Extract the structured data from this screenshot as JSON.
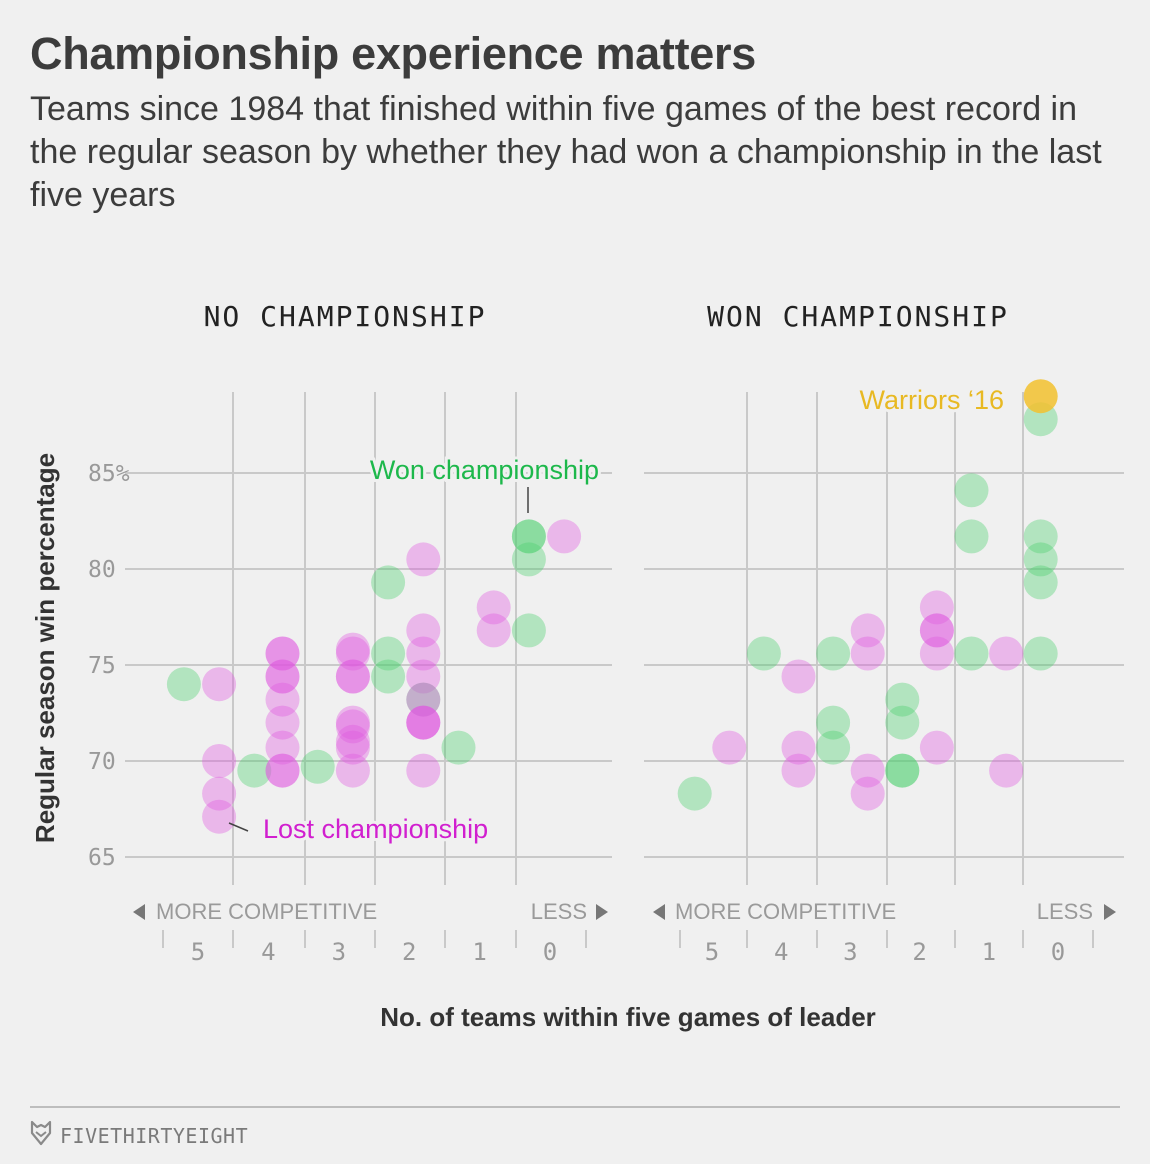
{
  "header": {
    "title": "Championship experience matters",
    "subtitle": "Teams since 1984 that finished within five games of the best record in the regular season by whether they had won a championship in the last five years"
  },
  "footer": {
    "brand": "FIVETHIRTYEIGHT",
    "brand_icon": "fivethirtyeight-fox-icon"
  },
  "colors": {
    "won": "#4ccf6e",
    "lost": "#e05ae0",
    "lost_dark": "#e01ed9",
    "warriors": "#f2c12e",
    "won_label": "#1db84b",
    "lost_label": "#d11fcf",
    "warriors_label": "#e8b923"
  },
  "chart_data": {
    "type": "scatter",
    "ylabel": "Regular season win percentage",
    "xlabel": "No. of teams within five games of leader",
    "ylim": [
      62.5,
      89
    ],
    "yticks": [
      "85%",
      "80",
      "75",
      "70",
      "65"
    ],
    "ytick_values": [
      85,
      80,
      75,
      70,
      65
    ],
    "x_categories": [
      "5",
      "4",
      "3",
      "2",
      "1",
      "0"
    ],
    "direction_labels": {
      "left": "MORE COMPETITIVE",
      "right": "LESS"
    },
    "panels": [
      {
        "title": "NO CHAMPIONSHIP",
        "annotations": {
          "won": "Won championship",
          "lost": "Lost championship"
        },
        "points": [
          {
            "x": 5.2,
            "y": 74.0,
            "result": "won"
          },
          {
            "x": 4.7,
            "y": 74.0,
            "result": "lost"
          },
          {
            "x": 4.7,
            "y": 70.0,
            "result": "lost"
          },
          {
            "x": 4.7,
            "y": 68.3,
            "result": "lost"
          },
          {
            "x": 4.7,
            "y": 67.1,
            "result": "lost"
          },
          {
            "x": 4.2,
            "y": 69.5,
            "result": "won"
          },
          {
            "x": 3.8,
            "y": 75.6,
            "result": "lost"
          },
          {
            "x": 3.8,
            "y": 75.6,
            "result": "lost"
          },
          {
            "x": 3.8,
            "y": 74.4,
            "result": "lost"
          },
          {
            "x": 3.8,
            "y": 74.4,
            "result": "lost"
          },
          {
            "x": 3.8,
            "y": 73.2,
            "result": "lost"
          },
          {
            "x": 3.8,
            "y": 72.0,
            "result": "lost"
          },
          {
            "x": 3.8,
            "y": 70.7,
            "result": "lost"
          },
          {
            "x": 3.8,
            "y": 69.5,
            "result": "lost"
          },
          {
            "x": 3.8,
            "y": 69.5,
            "result": "lost"
          },
          {
            "x": 3.3,
            "y": 69.7,
            "result": "won"
          },
          {
            "x": 2.8,
            "y": 75.8,
            "result": "lost"
          },
          {
            "x": 2.8,
            "y": 75.6,
            "result": "lost"
          },
          {
            "x": 2.8,
            "y": 74.4,
            "result": "lost"
          },
          {
            "x": 2.8,
            "y": 74.4,
            "result": "lost"
          },
          {
            "x": 2.8,
            "y": 72.0,
            "result": "lost"
          },
          {
            "x": 2.8,
            "y": 71.8,
            "result": "lost"
          },
          {
            "x": 2.8,
            "y": 71.0,
            "result": "lost"
          },
          {
            "x": 2.8,
            "y": 70.7,
            "result": "lost"
          },
          {
            "x": 2.8,
            "y": 69.5,
            "result": "lost"
          },
          {
            "x": 2.3,
            "y": 79.3,
            "result": "won"
          },
          {
            "x": 2.3,
            "y": 75.6,
            "result": "won"
          },
          {
            "x": 2.3,
            "y": 74.4,
            "result": "won"
          },
          {
            "x": 1.8,
            "y": 80.5,
            "result": "lost"
          },
          {
            "x": 1.8,
            "y": 76.8,
            "result": "lost"
          },
          {
            "x": 1.8,
            "y": 75.6,
            "result": "lost"
          },
          {
            "x": 1.8,
            "y": 74.4,
            "result": "lost"
          },
          {
            "x": 1.8,
            "y": 73.2,
            "result": "won"
          },
          {
            "x": 1.8,
            "y": 73.2,
            "result": "lost"
          },
          {
            "x": 1.8,
            "y": 72.0,
            "result": "lost"
          },
          {
            "x": 1.8,
            "y": 72.0,
            "result": "lost"
          },
          {
            "x": 1.8,
            "y": 72.0,
            "result": "lost"
          },
          {
            "x": 1.8,
            "y": 69.5,
            "result": "lost"
          },
          {
            "x": 1.3,
            "y": 70.7,
            "result": "won"
          },
          {
            "x": 0.8,
            "y": 78.0,
            "result": "lost"
          },
          {
            "x": 0.8,
            "y": 76.8,
            "result": "lost"
          },
          {
            "x": 0.3,
            "y": 81.7,
            "result": "won"
          },
          {
            "x": 0.3,
            "y": 81.7,
            "result": "won"
          },
          {
            "x": 0.3,
            "y": 80.5,
            "result": "won"
          },
          {
            "x": 0.3,
            "y": 76.8,
            "result": "won"
          },
          {
            "x": -0.2,
            "y": 81.7,
            "result": "lost"
          }
        ]
      },
      {
        "title": "WON CHAMPIONSHIP",
        "annotations": {
          "warriors": "Warriors ‘16"
        },
        "points": [
          {
            "x": 5.25,
            "y": 68.3,
            "result": "won"
          },
          {
            "x": 4.75,
            "y": 70.7,
            "result": "lost"
          },
          {
            "x": 4.25,
            "y": 75.6,
            "result": "won"
          },
          {
            "x": 3.75,
            "y": 74.4,
            "result": "lost"
          },
          {
            "x": 3.75,
            "y": 70.7,
            "result": "lost"
          },
          {
            "x": 3.75,
            "y": 69.5,
            "result": "lost"
          },
          {
            "x": 3.25,
            "y": 75.6,
            "result": "won"
          },
          {
            "x": 3.25,
            "y": 72.0,
            "result": "won"
          },
          {
            "x": 3.25,
            "y": 70.7,
            "result": "won"
          },
          {
            "x": 2.75,
            "y": 76.8,
            "result": "lost"
          },
          {
            "x": 2.75,
            "y": 75.6,
            "result": "lost"
          },
          {
            "x": 2.75,
            "y": 69.5,
            "result": "lost"
          },
          {
            "x": 2.75,
            "y": 68.3,
            "result": "lost"
          },
          {
            "x": 2.25,
            "y": 73.2,
            "result": "won"
          },
          {
            "x": 2.25,
            "y": 72.0,
            "result": "won"
          },
          {
            "x": 2.25,
            "y": 69.5,
            "result": "won"
          },
          {
            "x": 2.25,
            "y": 69.5,
            "result": "won"
          },
          {
            "x": 1.75,
            "y": 78.0,
            "result": "lost"
          },
          {
            "x": 1.75,
            "y": 76.8,
            "result": "lost"
          },
          {
            "x": 1.75,
            "y": 76.8,
            "result": "lost"
          },
          {
            "x": 1.75,
            "y": 75.6,
            "result": "lost"
          },
          {
            "x": 1.75,
            "y": 70.7,
            "result": "lost"
          },
          {
            "x": 1.25,
            "y": 84.1,
            "result": "won"
          },
          {
            "x": 1.25,
            "y": 81.7,
            "result": "won"
          },
          {
            "x": 1.25,
            "y": 75.6,
            "result": "won"
          },
          {
            "x": 0.75,
            "y": 75.6,
            "result": "lost"
          },
          {
            "x": 0.75,
            "y": 69.5,
            "result": "lost"
          },
          {
            "x": 0.25,
            "y": 87.8,
            "result": "won"
          },
          {
            "x": 0.25,
            "y": 81.7,
            "result": "won"
          },
          {
            "x": 0.25,
            "y": 80.5,
            "result": "won"
          },
          {
            "x": 0.25,
            "y": 79.3,
            "result": "won"
          },
          {
            "x": 0.25,
            "y": 75.6,
            "result": "won"
          },
          {
            "x": 0.25,
            "y": 89.0,
            "result": "warriors"
          }
        ]
      }
    ]
  }
}
